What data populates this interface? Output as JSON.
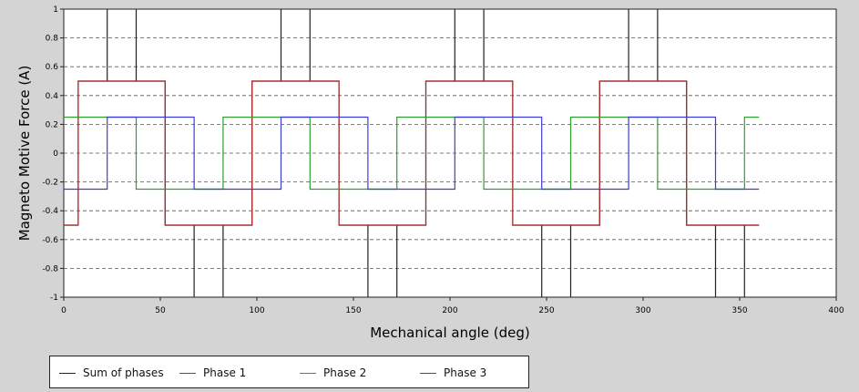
{
  "chart_data": {
    "type": "line",
    "xlabel": "Mechanical angle (deg)",
    "ylabel": "Magneto Motive Force (A)",
    "xlim": [
      0,
      400
    ],
    "ylim": [
      -1,
      1
    ],
    "xticks": [
      "0",
      "50",
      "100",
      "150",
      "200",
      "250",
      "300",
      "350",
      "400"
    ],
    "yticks": [
      "-1",
      "-0.8",
      "-0.6",
      "-0.4",
      "-0.2",
      "0",
      "0.2",
      "0.4",
      "0.6",
      "0.8",
      "1"
    ],
    "grid": "horizontal dashed",
    "legend_position": "bottom-left",
    "series": [
      {
        "name": "Sum of phases",
        "color": "#222222",
        "step": true,
        "x": [
          0,
          7.5,
          7.5,
          22.5,
          22.5,
          22.5,
          22.5,
          37.5,
          37.5,
          37.5,
          37.5,
          52.5,
          52.5,
          67.5,
          67.5,
          67.5,
          67.5,
          82.5,
          82.5,
          82.5,
          82.5,
          97.5,
          97.5,
          112.5,
          112.5,
          112.5,
          112.5,
          127.5,
          127.5,
          127.5,
          127.5,
          142.5,
          142.5,
          157.5,
          157.5,
          157.5,
          157.5,
          172.5,
          172.5,
          172.5,
          172.5,
          187.5,
          187.5,
          202.5,
          202.5,
          202.5,
          202.5,
          217.5,
          217.5,
          217.5,
          217.5,
          232.5,
          232.5,
          247.5,
          247.5,
          247.5,
          247.5,
          262.5,
          262.5,
          262.5,
          262.5,
          277.5,
          277.5,
          292.5,
          292.5,
          292.5,
          292.5,
          307.5,
          307.5,
          307.5,
          307.5,
          322.5,
          322.5,
          337.5,
          337.5,
          337.5,
          337.5,
          352.5,
          352.5,
          352.5,
          352.5,
          360
        ],
        "y": [
          -0.5,
          -0.5,
          0.5,
          0.5,
          1,
          1,
          0.5,
          0.5,
          1,
          1,
          0.5,
          0.5,
          -0.5,
          -0.5,
          -1,
          -1,
          -0.5,
          -0.5,
          -1,
          -1,
          -0.5,
          -0.5,
          0.5,
          0.5,
          1,
          1,
          0.5,
          0.5,
          1,
          1,
          0.5,
          0.5,
          -0.5,
          -0.5,
          -1,
          -1,
          -0.5,
          -0.5,
          -1,
          -1,
          -0.5,
          -0.5,
          0.5,
          0.5,
          1,
          1,
          0.5,
          0.5,
          1,
          1,
          0.5,
          0.5,
          -0.5,
          -0.5,
          -1,
          -1,
          -0.5,
          -0.5,
          -1,
          -1,
          -0.5,
          -0.5,
          0.5,
          0.5,
          1,
          1,
          0.5,
          0.5,
          1,
          1,
          0.5,
          0.5,
          -0.5,
          -0.5,
          -1,
          -1,
          -0.5,
          -0.5,
          -1,
          -1,
          -0.5,
          -0.5
        ]
      },
      {
        "name": "Phase 1",
        "color": "#b22a2a",
        "step": true,
        "x": [
          0,
          7.5,
          7.5,
          52.5,
          52.5,
          97.5,
          97.5,
          142.5,
          142.5,
          187.5,
          187.5,
          232.5,
          232.5,
          277.5,
          277.5,
          322.5,
          322.5,
          360
        ],
        "y": [
          -0.5,
          -0.5,
          0.5,
          0.5,
          -0.5,
          -0.5,
          0.5,
          0.5,
          -0.5,
          -0.5,
          0.5,
          0.5,
          -0.5,
          -0.5,
          0.5,
          0.5,
          -0.5,
          -0.5
        ]
      },
      {
        "name": "Phase 2",
        "color": "#2e9e2e",
        "step": true,
        "x": [
          0,
          37.5,
          37.5,
          82.5,
          82.5,
          127.5,
          127.5,
          172.5,
          172.5,
          217.5,
          217.5,
          262.5,
          262.5,
          307.5,
          307.5,
          352.5,
          352.5,
          360
        ],
        "y": [
          0.25,
          0.25,
          -0.25,
          -0.25,
          0.25,
          0.25,
          -0.25,
          -0.25,
          0.25,
          0.25,
          -0.25,
          -0.25,
          0.25,
          0.25,
          -0.25,
          -0.25,
          0.25,
          0.25
        ]
      },
      {
        "name": "Phase 3",
        "color": "#3c3cd6",
        "step": true,
        "x": [
          0,
          22.5,
          22.5,
          67.5,
          67.5,
          112.5,
          112.5,
          157.5,
          157.5,
          202.5,
          202.5,
          247.5,
          247.5,
          292.5,
          292.5,
          337.5,
          337.5,
          360
        ],
        "y": [
          -0.25,
          -0.25,
          0.25,
          0.25,
          -0.25,
          -0.25,
          0.25,
          0.25,
          -0.25,
          -0.25,
          0.25,
          0.25,
          -0.25,
          -0.25,
          0.25,
          0.25,
          -0.25,
          -0.25
        ]
      }
    ]
  }
}
